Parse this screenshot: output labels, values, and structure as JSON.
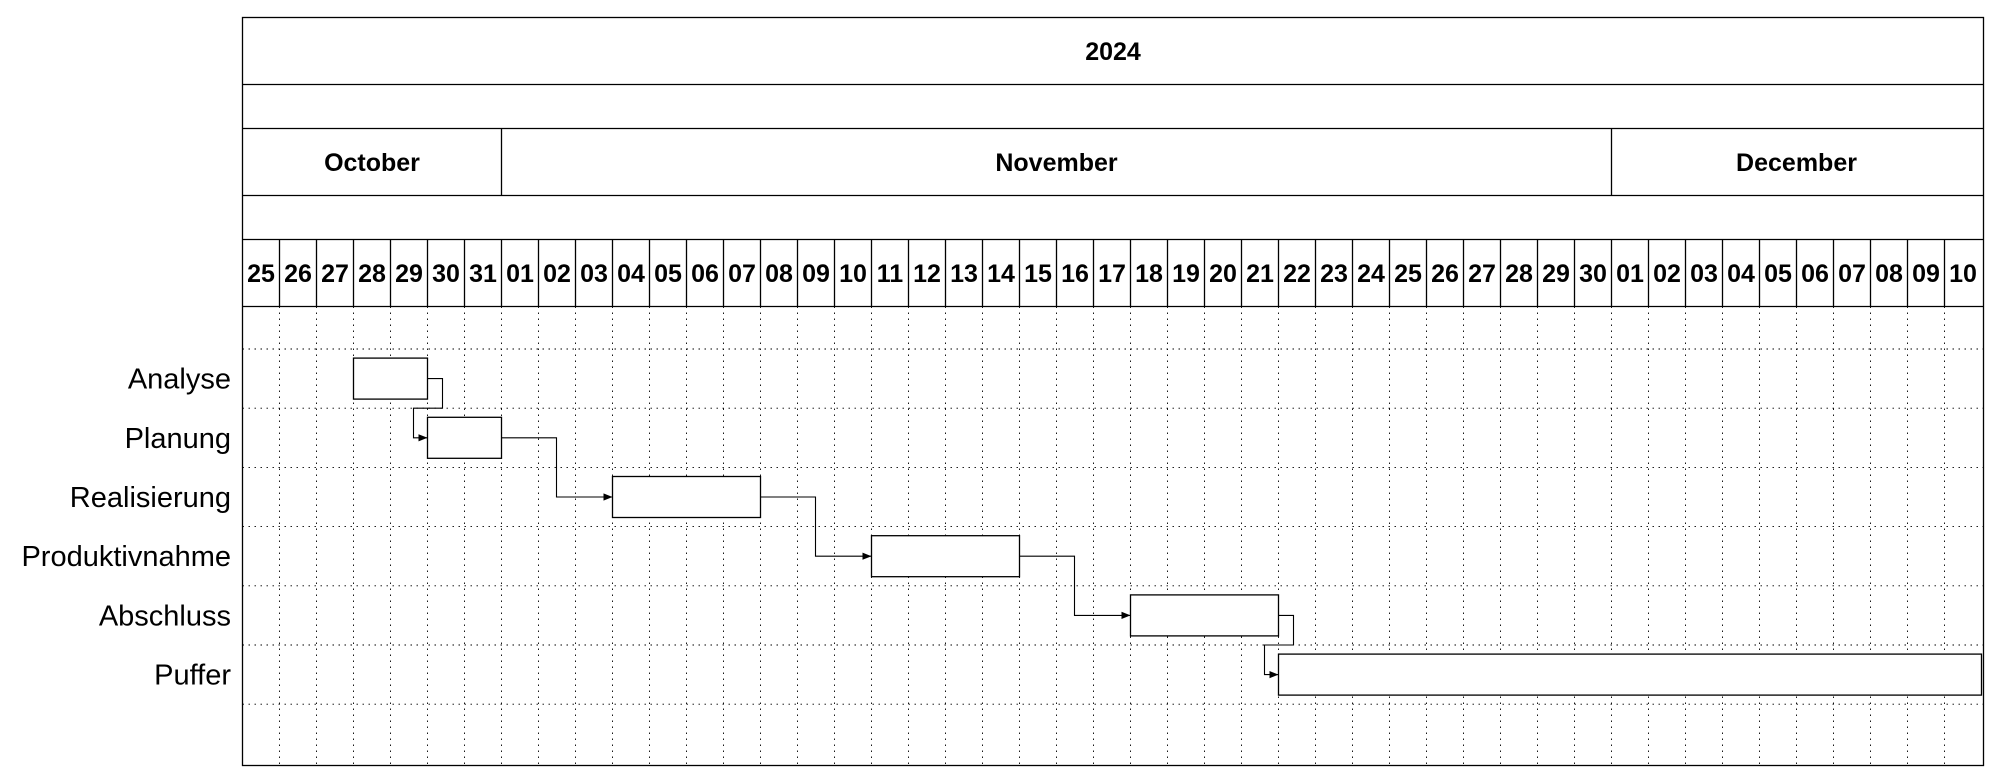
{
  "chart_data": {
    "type": "gantt",
    "year": "2024",
    "months": [
      {
        "name": "October",
        "days": [
          "25",
          "26",
          "27",
          "28",
          "29",
          "30",
          "31"
        ]
      },
      {
        "name": "November",
        "days": [
          "01",
          "02",
          "03",
          "04",
          "05",
          "06",
          "07",
          "08",
          "09",
          "10",
          "11",
          "12",
          "13",
          "14",
          "15",
          "16",
          "17",
          "18",
          "19",
          "20",
          "21",
          "22",
          "23",
          "24",
          "25",
          "26",
          "27",
          "28",
          "29",
          "30"
        ]
      },
      {
        "name": "December",
        "days": [
          "01",
          "02",
          "03",
          "04",
          "05",
          "06",
          "07",
          "08",
          "09",
          "10"
        ]
      }
    ],
    "tasks": [
      {
        "name": "Analyse",
        "start": "2024-10-28",
        "end": "2024-10-29"
      },
      {
        "name": "Planung",
        "start": "2024-10-30",
        "end": "2024-10-31"
      },
      {
        "name": "Realisierung",
        "start": "2024-11-04",
        "end": "2024-11-07"
      },
      {
        "name": "Produktivnahme",
        "start": "2024-11-11",
        "end": "2024-11-14"
      },
      {
        "name": "Abschluss",
        "start": "2024-11-18",
        "end": "2024-11-21"
      },
      {
        "name": "Puffer",
        "start": "2024-11-22",
        "end": "2024-12-10"
      }
    ],
    "dependencies": [
      {
        "from": "Analyse",
        "to": "Planung"
      },
      {
        "from": "Planung",
        "to": "Realisierung"
      },
      {
        "from": "Realisierung",
        "to": "Produktivnahme"
      },
      {
        "from": "Produktivnahme",
        "to": "Abschluss"
      },
      {
        "from": "Abschluss",
        "to": "Puffer"
      }
    ],
    "grid": "dotted vertical and horizontal"
  }
}
